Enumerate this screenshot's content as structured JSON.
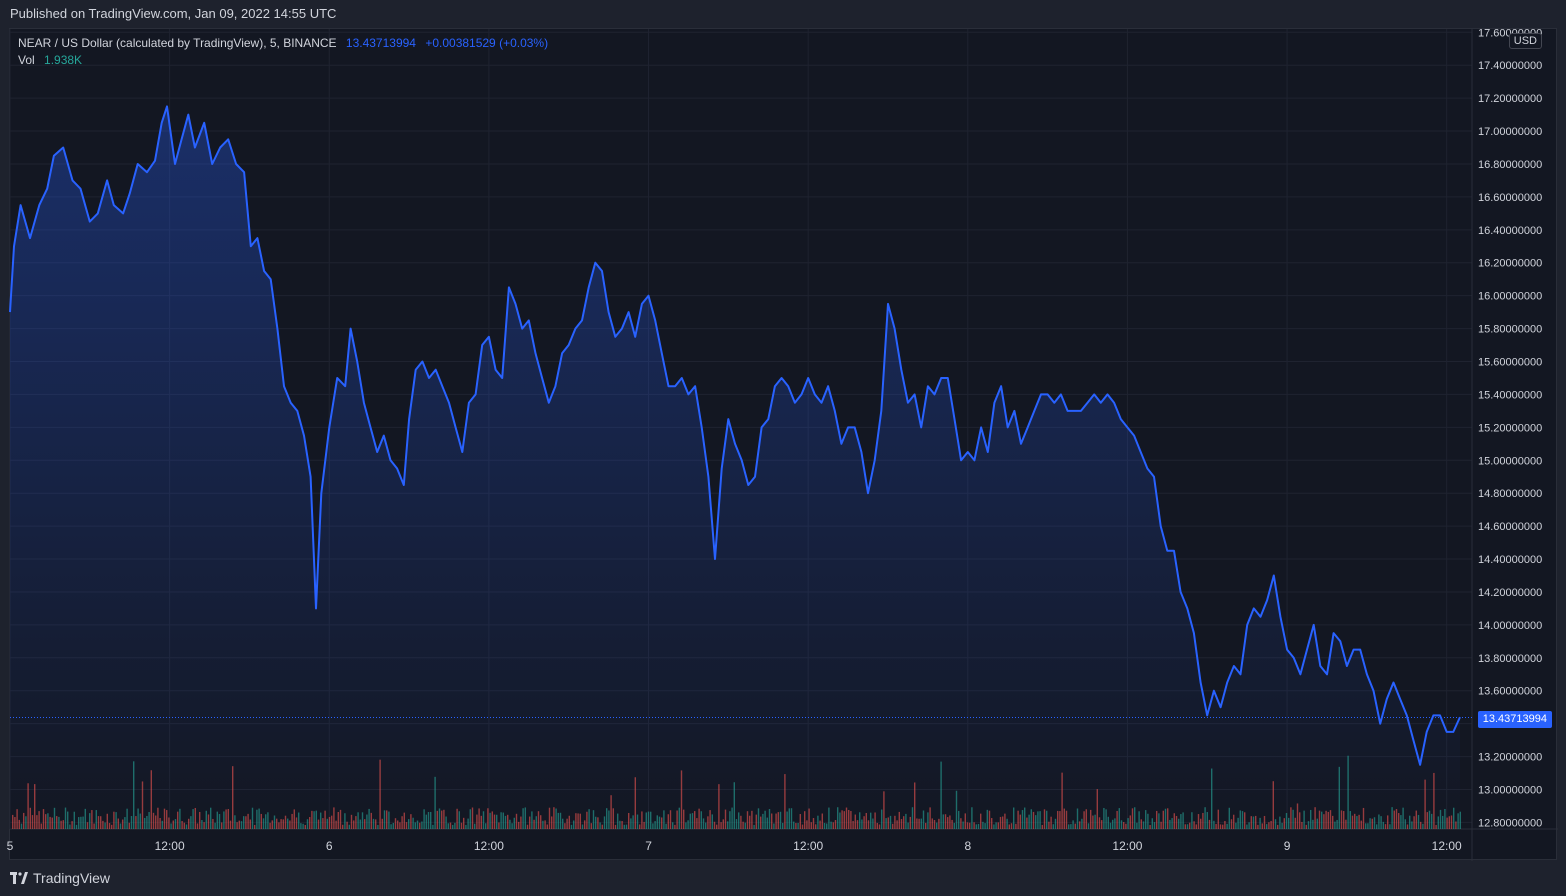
{
  "header": {
    "published": "Published on TradingView.com, Jan 09, 2022 14:55 UTC"
  },
  "legend": {
    "symbol": "NEAR / US Dollar (calculated by TradingView), 5, BINANCE",
    "price": "13.43713994",
    "change": "+0.00381529 (+0.03%)",
    "vol_label": "Vol",
    "vol_value": "1.938K"
  },
  "currency_badge": "USD",
  "last_price_tag": "13.43713994",
  "footer": {
    "brand": "TradingView"
  },
  "colors": {
    "line": "#2962ff",
    "up_volume": "#26a69a",
    "down_volume": "#ef5350",
    "background": "#131722",
    "grid": "#1f2330"
  },
  "chart_data": {
    "type": "area",
    "title": "NEAR / US Dollar (calculated by TradingView), 5, BINANCE",
    "xlabel": "",
    "ylabel": "",
    "ylim": [
      12.76,
      17.62
    ],
    "y_ticks": [
      "17.60000000",
      "17.40000000",
      "17.20000000",
      "17.00000000",
      "16.80000000",
      "16.60000000",
      "16.40000000",
      "16.20000000",
      "16.00000000",
      "15.80000000",
      "15.60000000",
      "15.40000000",
      "15.20000000",
      "15.00000000",
      "14.80000000",
      "14.60000000",
      "14.40000000",
      "14.20000000",
      "14.00000000",
      "13.80000000",
      "13.60000000",
      "13.40000000",
      "13.20000000",
      "13.00000000",
      "12.80000000"
    ],
    "x_range_hours": [
      0,
      109
    ],
    "x_ticks": [
      {
        "label": "5",
        "t": 0
      },
      {
        "label": "12:00",
        "t": 12
      },
      {
        "label": "6",
        "t": 24
      },
      {
        "label": "12:00",
        "t": 36
      },
      {
        "label": "7",
        "t": 48
      },
      {
        "label": "12:00",
        "t": 60
      },
      {
        "label": "8",
        "t": 72
      },
      {
        "label": "12:00",
        "t": 84
      },
      {
        "label": "9",
        "t": 96
      },
      {
        "label": "12:00",
        "t": 108
      }
    ],
    "series": [
      {
        "type": "line",
        "points": [
          [
            0,
            15.9
          ],
          [
            0.3,
            16.3
          ],
          [
            0.8,
            16.55
          ],
          [
            1.5,
            16.35
          ],
          [
            2.2,
            16.55
          ],
          [
            2.8,
            16.65
          ],
          [
            3.3,
            16.85
          ],
          [
            4,
            16.9
          ],
          [
            4.7,
            16.7
          ],
          [
            5.3,
            16.65
          ],
          [
            6,
            16.45
          ],
          [
            6.6,
            16.5
          ],
          [
            7.3,
            16.7
          ],
          [
            7.8,
            16.55
          ],
          [
            8.5,
            16.5
          ],
          [
            9,
            16.62
          ],
          [
            9.6,
            16.8
          ],
          [
            10.3,
            16.75
          ],
          [
            10.9,
            16.82
          ],
          [
            11.4,
            17.05
          ],
          [
            11.8,
            17.15
          ],
          [
            12.4,
            16.8
          ],
          [
            12.9,
            16.95
          ],
          [
            13.4,
            17.1
          ],
          [
            13.9,
            16.9
          ],
          [
            14.6,
            17.05
          ],
          [
            15.2,
            16.8
          ],
          [
            15.8,
            16.9
          ],
          [
            16.4,
            16.95
          ],
          [
            17,
            16.8
          ],
          [
            17.6,
            16.75
          ],
          [
            18.1,
            16.3
          ],
          [
            18.6,
            16.35
          ],
          [
            19.1,
            16.15
          ],
          [
            19.6,
            16.1
          ],
          [
            20.1,
            15.8
          ],
          [
            20.6,
            15.45
          ],
          [
            21.1,
            15.35
          ],
          [
            21.6,
            15.3
          ],
          [
            22.1,
            15.15
          ],
          [
            22.6,
            14.9
          ],
          [
            23.0,
            14.1
          ],
          [
            23.4,
            14.8
          ],
          [
            24,
            15.2
          ],
          [
            24.6,
            15.5
          ],
          [
            25.2,
            15.45
          ],
          [
            25.6,
            15.8
          ],
          [
            26.1,
            15.6
          ],
          [
            26.6,
            15.35
          ],
          [
            27.1,
            15.2
          ],
          [
            27.6,
            15.05
          ],
          [
            28.1,
            15.15
          ],
          [
            28.6,
            15.0
          ],
          [
            29.1,
            14.95
          ],
          [
            29.6,
            14.85
          ],
          [
            30,
            15.25
          ],
          [
            30.5,
            15.55
          ],
          [
            31,
            15.6
          ],
          [
            31.5,
            15.5
          ],
          [
            32,
            15.55
          ],
          [
            32.5,
            15.45
          ],
          [
            33,
            15.35
          ],
          [
            33.5,
            15.2
          ],
          [
            34,
            15.05
          ],
          [
            34.5,
            15.35
          ],
          [
            35,
            15.4
          ],
          [
            35.5,
            15.7
          ],
          [
            36,
            15.75
          ],
          [
            36.5,
            15.55
          ],
          [
            37,
            15.5
          ],
          [
            37.5,
            16.05
          ],
          [
            38,
            15.95
          ],
          [
            38.5,
            15.8
          ],
          [
            39,
            15.85
          ],
          [
            39.5,
            15.65
          ],
          [
            40,
            15.5
          ],
          [
            40.5,
            15.35
          ],
          [
            41,
            15.45
          ],
          [
            41.5,
            15.65
          ],
          [
            42,
            15.7
          ],
          [
            42.5,
            15.8
          ],
          [
            43,
            15.85
          ],
          [
            43.5,
            16.05
          ],
          [
            44,
            16.2
          ],
          [
            44.5,
            16.15
          ],
          [
            45,
            15.9
          ],
          [
            45.5,
            15.75
          ],
          [
            46,
            15.8
          ],
          [
            46.5,
            15.9
          ],
          [
            47,
            15.75
          ],
          [
            47.5,
            15.95
          ],
          [
            48,
            16.0
          ],
          [
            48.5,
            15.85
          ],
          [
            49,
            15.65
          ],
          [
            49.5,
            15.45
          ],
          [
            50,
            15.45
          ],
          [
            50.5,
            15.5
          ],
          [
            51,
            15.4
          ],
          [
            51.5,
            15.45
          ],
          [
            52,
            15.2
          ],
          [
            52.5,
            14.9
          ],
          [
            53,
            14.4
          ],
          [
            53.5,
            14.95
          ],
          [
            54,
            15.25
          ],
          [
            54.5,
            15.1
          ],
          [
            55,
            15.0
          ],
          [
            55.5,
            14.85
          ],
          [
            56,
            14.9
          ],
          [
            56.5,
            15.2
          ],
          [
            57,
            15.25
          ],
          [
            57.5,
            15.45
          ],
          [
            58,
            15.5
          ],
          [
            58.5,
            15.45
          ],
          [
            59,
            15.35
          ],
          [
            59.5,
            15.4
          ],
          [
            60,
            15.5
          ],
          [
            60.5,
            15.4
          ],
          [
            61,
            15.35
          ],
          [
            61.5,
            15.45
          ],
          [
            62,
            15.3
          ],
          [
            62.5,
            15.1
          ],
          [
            63,
            15.2
          ],
          [
            63.5,
            15.2
          ],
          [
            64,
            15.05
          ],
          [
            64.5,
            14.8
          ],
          [
            65,
            15.0
          ],
          [
            65.5,
            15.3
          ],
          [
            66,
            15.95
          ],
          [
            66.5,
            15.8
          ],
          [
            67,
            15.55
          ],
          [
            67.5,
            15.35
          ],
          [
            68,
            15.4
          ],
          [
            68.5,
            15.2
          ],
          [
            69,
            15.45
          ],
          [
            69.5,
            15.4
          ],
          [
            70,
            15.5
          ],
          [
            70.5,
            15.5
          ],
          [
            71,
            15.25
          ],
          [
            71.5,
            15.0
          ],
          [
            72,
            15.05
          ],
          [
            72.5,
            15.0
          ],
          [
            73,
            15.2
          ],
          [
            73.5,
            15.05
          ],
          [
            74,
            15.35
          ],
          [
            74.5,
            15.45
          ],
          [
            75,
            15.2
          ],
          [
            75.5,
            15.3
          ],
          [
            76,
            15.1
          ],
          [
            76.5,
            15.2
          ],
          [
            77,
            15.3
          ],
          [
            77.5,
            15.4
          ],
          [
            78,
            15.4
          ],
          [
            78.5,
            15.35
          ],
          [
            79,
            15.4
          ],
          [
            79.5,
            15.3
          ],
          [
            80,
            15.3
          ],
          [
            80.5,
            15.3
          ],
          [
            81,
            15.35
          ],
          [
            81.5,
            15.4
          ],
          [
            82,
            15.35
          ],
          [
            82.5,
            15.4
          ],
          [
            83,
            15.35
          ],
          [
            83.5,
            15.25
          ],
          [
            84,
            15.2
          ],
          [
            84.5,
            15.15
          ],
          [
            85,
            15.05
          ],
          [
            85.5,
            14.95
          ],
          [
            86,
            14.9
          ],
          [
            86.5,
            14.6
          ],
          [
            87,
            14.45
          ],
          [
            87.5,
            14.45
          ],
          [
            88,
            14.2
          ],
          [
            88.5,
            14.1
          ],
          [
            89,
            13.95
          ],
          [
            89.5,
            13.65
          ],
          [
            90,
            13.45
          ],
          [
            90.5,
            13.6
          ],
          [
            91,
            13.5
          ],
          [
            91.5,
            13.65
          ],
          [
            92,
            13.75
          ],
          [
            92.5,
            13.7
          ],
          [
            93,
            14.0
          ],
          [
            93.5,
            14.1
          ],
          [
            94,
            14.05
          ],
          [
            94.5,
            14.15
          ],
          [
            95,
            14.3
          ],
          [
            95.5,
            14.05
          ],
          [
            96,
            13.85
          ],
          [
            96.5,
            13.8
          ],
          [
            97,
            13.7
          ],
          [
            97.5,
            13.85
          ],
          [
            98,
            14.0
          ],
          [
            98.5,
            13.75
          ],
          [
            99,
            13.7
          ],
          [
            99.5,
            13.95
          ],
          [
            100,
            13.9
          ],
          [
            100.5,
            13.75
          ],
          [
            101,
            13.85
          ],
          [
            101.5,
            13.85
          ],
          [
            102,
            13.7
          ],
          [
            102.5,
            13.6
          ],
          [
            103,
            13.4
          ],
          [
            103.5,
            13.55
          ],
          [
            104,
            13.65
          ],
          [
            104.5,
            13.55
          ],
          [
            105,
            13.45
          ],
          [
            105.5,
            13.3
          ],
          [
            106,
            13.15
          ],
          [
            106.5,
            13.35
          ],
          [
            107,
            13.45
          ],
          [
            107.5,
            13.45
          ],
          [
            108,
            13.35
          ],
          [
            108.5,
            13.35
          ],
          [
            109,
            13.44
          ]
        ]
      }
    ]
  }
}
